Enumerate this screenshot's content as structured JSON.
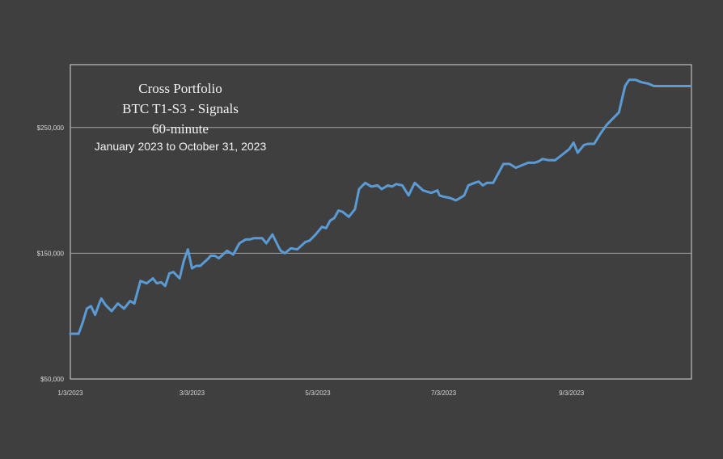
{
  "chart_data": {
    "type": "line",
    "title_lines": [
      "Cross Portfolio",
      "BTC T1-S3 - Signals",
      "60-minute"
    ],
    "subtitle": "January 2023 to October 31, 2023",
    "xlabel": "",
    "ylabel": "",
    "x_range": [
      "2023-01-03",
      "2023-10-31"
    ],
    "ylim": [
      50000,
      300000
    ],
    "y_ticks": [
      {
        "value": 50000,
        "label": "$50,000"
      },
      {
        "value": 150000,
        "label": "$150,000"
      },
      {
        "value": 250000,
        "label": "$250,000"
      }
    ],
    "x_ticks": [
      {
        "date": "2023-01-03",
        "label": "1/3/2023"
      },
      {
        "date": "2023-03-03",
        "label": "3/3/2023"
      },
      {
        "date": "2023-05-03",
        "label": "5/3/2023"
      },
      {
        "date": "2023-07-03",
        "label": "7/3/2023"
      },
      {
        "date": "2023-09-03",
        "label": "9/3/2023"
      }
    ],
    "grid": "horizontal",
    "legend": "none",
    "line_color": "#5b9bd5",
    "background_color": "#3f3f3f",
    "series": [
      {
        "x": [
          "2023-01-03",
          "2023-01-07",
          "2023-01-09",
          "2023-01-11",
          "2023-01-13",
          "2023-01-15",
          "2023-01-17",
          "2023-01-18",
          "2023-01-20",
          "2023-01-23",
          "2023-01-26",
          "2023-01-29",
          "2023-02-01",
          "2023-02-03",
          "2023-02-06",
          "2023-02-09",
          "2023-02-12",
          "2023-02-14",
          "2023-02-16",
          "2023-02-18",
          "2023-02-20",
          "2023-02-22",
          "2023-02-25",
          "2023-02-27",
          "2023-03-01",
          "2023-03-03",
          "2023-03-05",
          "2023-03-07",
          "2023-03-09",
          "2023-03-11",
          "2023-03-12",
          "2023-03-13",
          "2023-03-14",
          "2023-03-16",
          "2023-03-18",
          "2023-03-20",
          "2023-03-23",
          "2023-03-26",
          "2023-03-29",
          "2023-03-31",
          "2023-04-02",
          "2023-04-04",
          "2023-04-06",
          "2023-04-08",
          "2023-04-11",
          "2023-04-14",
          "2023-04-15",
          "2023-04-17",
          "2023-04-20",
          "2023-04-23",
          "2023-04-27",
          "2023-04-29",
          "2023-05-02",
          "2023-05-05",
          "2023-05-07",
          "2023-05-09",
          "2023-05-11",
          "2023-05-13",
          "2023-05-15",
          "2023-05-18",
          "2023-05-21",
          "2023-05-23",
          "2023-05-26",
          "2023-05-29",
          "2023-06-01",
          "2023-06-03",
          "2023-06-06",
          "2023-06-08",
          "2023-06-10",
          "2023-06-13",
          "2023-06-16",
          "2023-06-19",
          "2023-06-21",
          "2023-06-23",
          "2023-06-25",
          "2023-06-27",
          "2023-06-30",
          "2023-07-01",
          "2023-07-03",
          "2023-07-06",
          "2023-07-09",
          "2023-07-11",
          "2023-07-13",
          "2023-07-15",
          "2023-07-18",
          "2023-07-20",
          "2023-07-22",
          "2023-07-24",
          "2023-07-27",
          "2023-07-30",
          "2023-08-01",
          "2023-08-04",
          "2023-08-07",
          "2023-08-10",
          "2023-08-13",
          "2023-08-16",
          "2023-08-18",
          "2023-08-20",
          "2023-08-23",
          "2023-08-26",
          "2023-08-30",
          "2023-09-02",
          "2023-09-04",
          "2023-09-06",
          "2023-09-09",
          "2023-09-11",
          "2023-09-14",
          "2023-09-17",
          "2023-09-20",
          "2023-09-23",
          "2023-09-26",
          "2023-09-29",
          "2023-10-01",
          "2023-10-04",
          "2023-10-07",
          "2023-10-10",
          "2023-10-13",
          "2023-10-15",
          "2023-10-18",
          "2023-10-20",
          "2023-10-22",
          "2023-10-23",
          "2023-10-25",
          "2023-10-27",
          "2023-10-29",
          "2023-10-31"
        ],
        "values": [
          86000,
          86000,
          95000,
          106000,
          108000,
          101000,
          110000,
          114000,
          109000,
          104000,
          110000,
          106000,
          112000,
          110000,
          128000,
          126000,
          130000,
          126000,
          127000,
          124000,
          134000,
          135000,
          130000,
          144000,
          153000,
          138000,
          140000,
          140000,
          143000,
          146000,
          148000,
          148000,
          148000,
          146000,
          149000,
          152000,
          149000,
          158000,
          161000,
          161000,
          162000,
          162000,
          162000,
          158000,
          165000,
          155000,
          152000,
          150000,
          154000,
          153000,
          159000,
          160000,
          165000,
          171000,
          170000,
          176000,
          178000,
          184000,
          183000,
          179000,
          185000,
          201000,
          206000,
          203000,
          204000,
          201000,
          204000,
          203000,
          205000,
          204000,
          196000,
          206000,
          203000,
          200000,
          199000,
          198000,
          200000,
          196000,
          195000,
          194000,
          192000,
          194000,
          196000,
          204000,
          206000,
          207000,
          204000,
          206000,
          206000,
          215000,
          221000,
          221000,
          218000,
          220000,
          222000,
          222000,
          223000,
          225000,
          224000,
          224000,
          229000,
          233000,
          238000,
          230000,
          236000,
          237000,
          237000,
          245000,
          252000,
          257000,
          262000,
          283000,
          288000,
          288000,
          286000,
          285000,
          283000,
          283000,
          283000,
          283000,
          283000,
          283000,
          283000,
          283000,
          283000,
          283000
        ]
      }
    ]
  }
}
